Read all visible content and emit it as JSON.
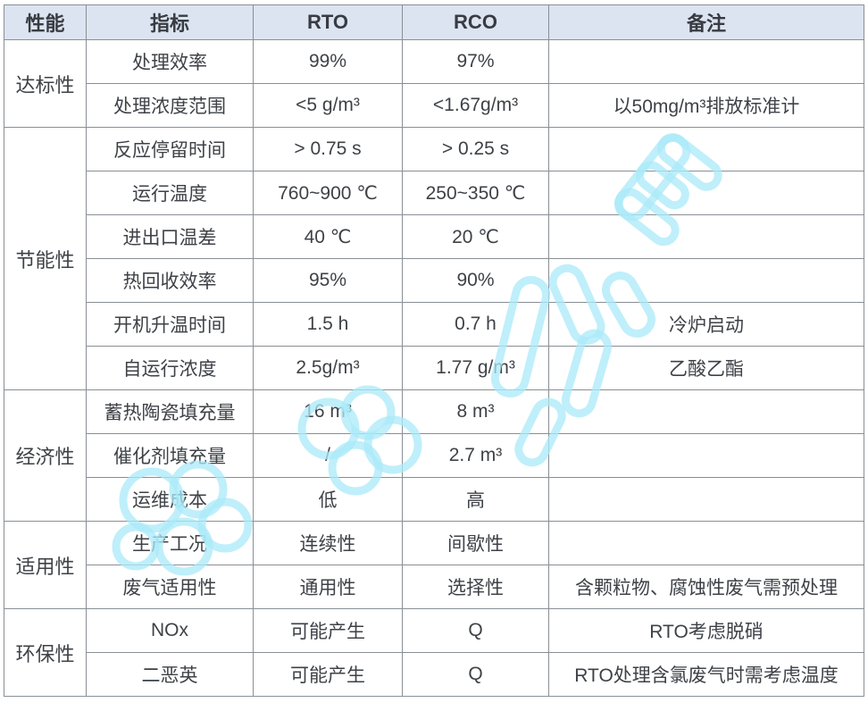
{
  "table": {
    "headers": [
      "性能",
      "指标",
      "RTO",
      "RCO",
      "备注"
    ],
    "groups": [
      {
        "label": "达标性",
        "rows": [
          {
            "indicator": "处理效率",
            "rto": "99%",
            "rco": "97%",
            "note": ""
          },
          {
            "indicator": "处理浓度范围",
            "rto": "<5 g/m³",
            "rco": "<1.67g/m³",
            "note": "以50mg/m³排放标准计"
          }
        ]
      },
      {
        "label": "节能性",
        "rows": [
          {
            "indicator": "反应停留时间",
            "rto": "> 0.75 s",
            "rco": "> 0.25 s",
            "note": ""
          },
          {
            "indicator": "运行温度",
            "rto": "760~900 ℃",
            "rco": "250~350 ℃",
            "note": ""
          },
          {
            "indicator": "进出口温差",
            "rto": "40 ℃",
            "rco": "20 ℃",
            "note": ""
          },
          {
            "indicator": "热回收效率",
            "rto": "95%",
            "rco": "90%",
            "note": ""
          },
          {
            "indicator": "开机升温时间",
            "rto": "1.5 h",
            "rco": "0.7 h",
            "note": "冷炉启动"
          },
          {
            "indicator": "自运行浓度",
            "rto": "2.5g/m³",
            "rco": "1.77 g/m³",
            "note": "乙酸乙酯"
          }
        ]
      },
      {
        "label": "经济性",
        "rows": [
          {
            "indicator": "蓄热陶瓷填充量",
            "rto": "16 m³",
            "rco": "8 m³",
            "note": ""
          },
          {
            "indicator": "催化剂填充量",
            "rto": "/",
            "rco": "2.7 m³",
            "note": ""
          },
          {
            "indicator": "运维成本",
            "rto": "低",
            "rco": "高",
            "note": ""
          }
        ]
      },
      {
        "label": "适用性",
        "rows": [
          {
            "indicator": "生产工况",
            "rto": "连续性",
            "rco": "间歇性",
            "note": ""
          },
          {
            "indicator": "废气适用性",
            "rto": "通用性",
            "rco": "选择性",
            "note": "含颗粒物、腐蚀性废气需预处理"
          }
        ]
      },
      {
        "label": "环保性",
        "rows": [
          {
            "indicator": "NOx",
            "rto": "可能产生",
            "rco": "Q",
            "note": "RTO考虑脱硝"
          },
          {
            "indicator": "二恶英",
            "rto": "可能产生",
            "rco": "Q",
            "note": "RTO处理含氯废气时需考虑温度"
          }
        ]
      }
    ]
  },
  "colors": {
    "header_bg": "#dce4f1",
    "border": "#898f94",
    "text": "#3e4247",
    "watermark": "#a9e9f8"
  },
  "watermark": {
    "name": "cyan-doodle-watermark"
  }
}
